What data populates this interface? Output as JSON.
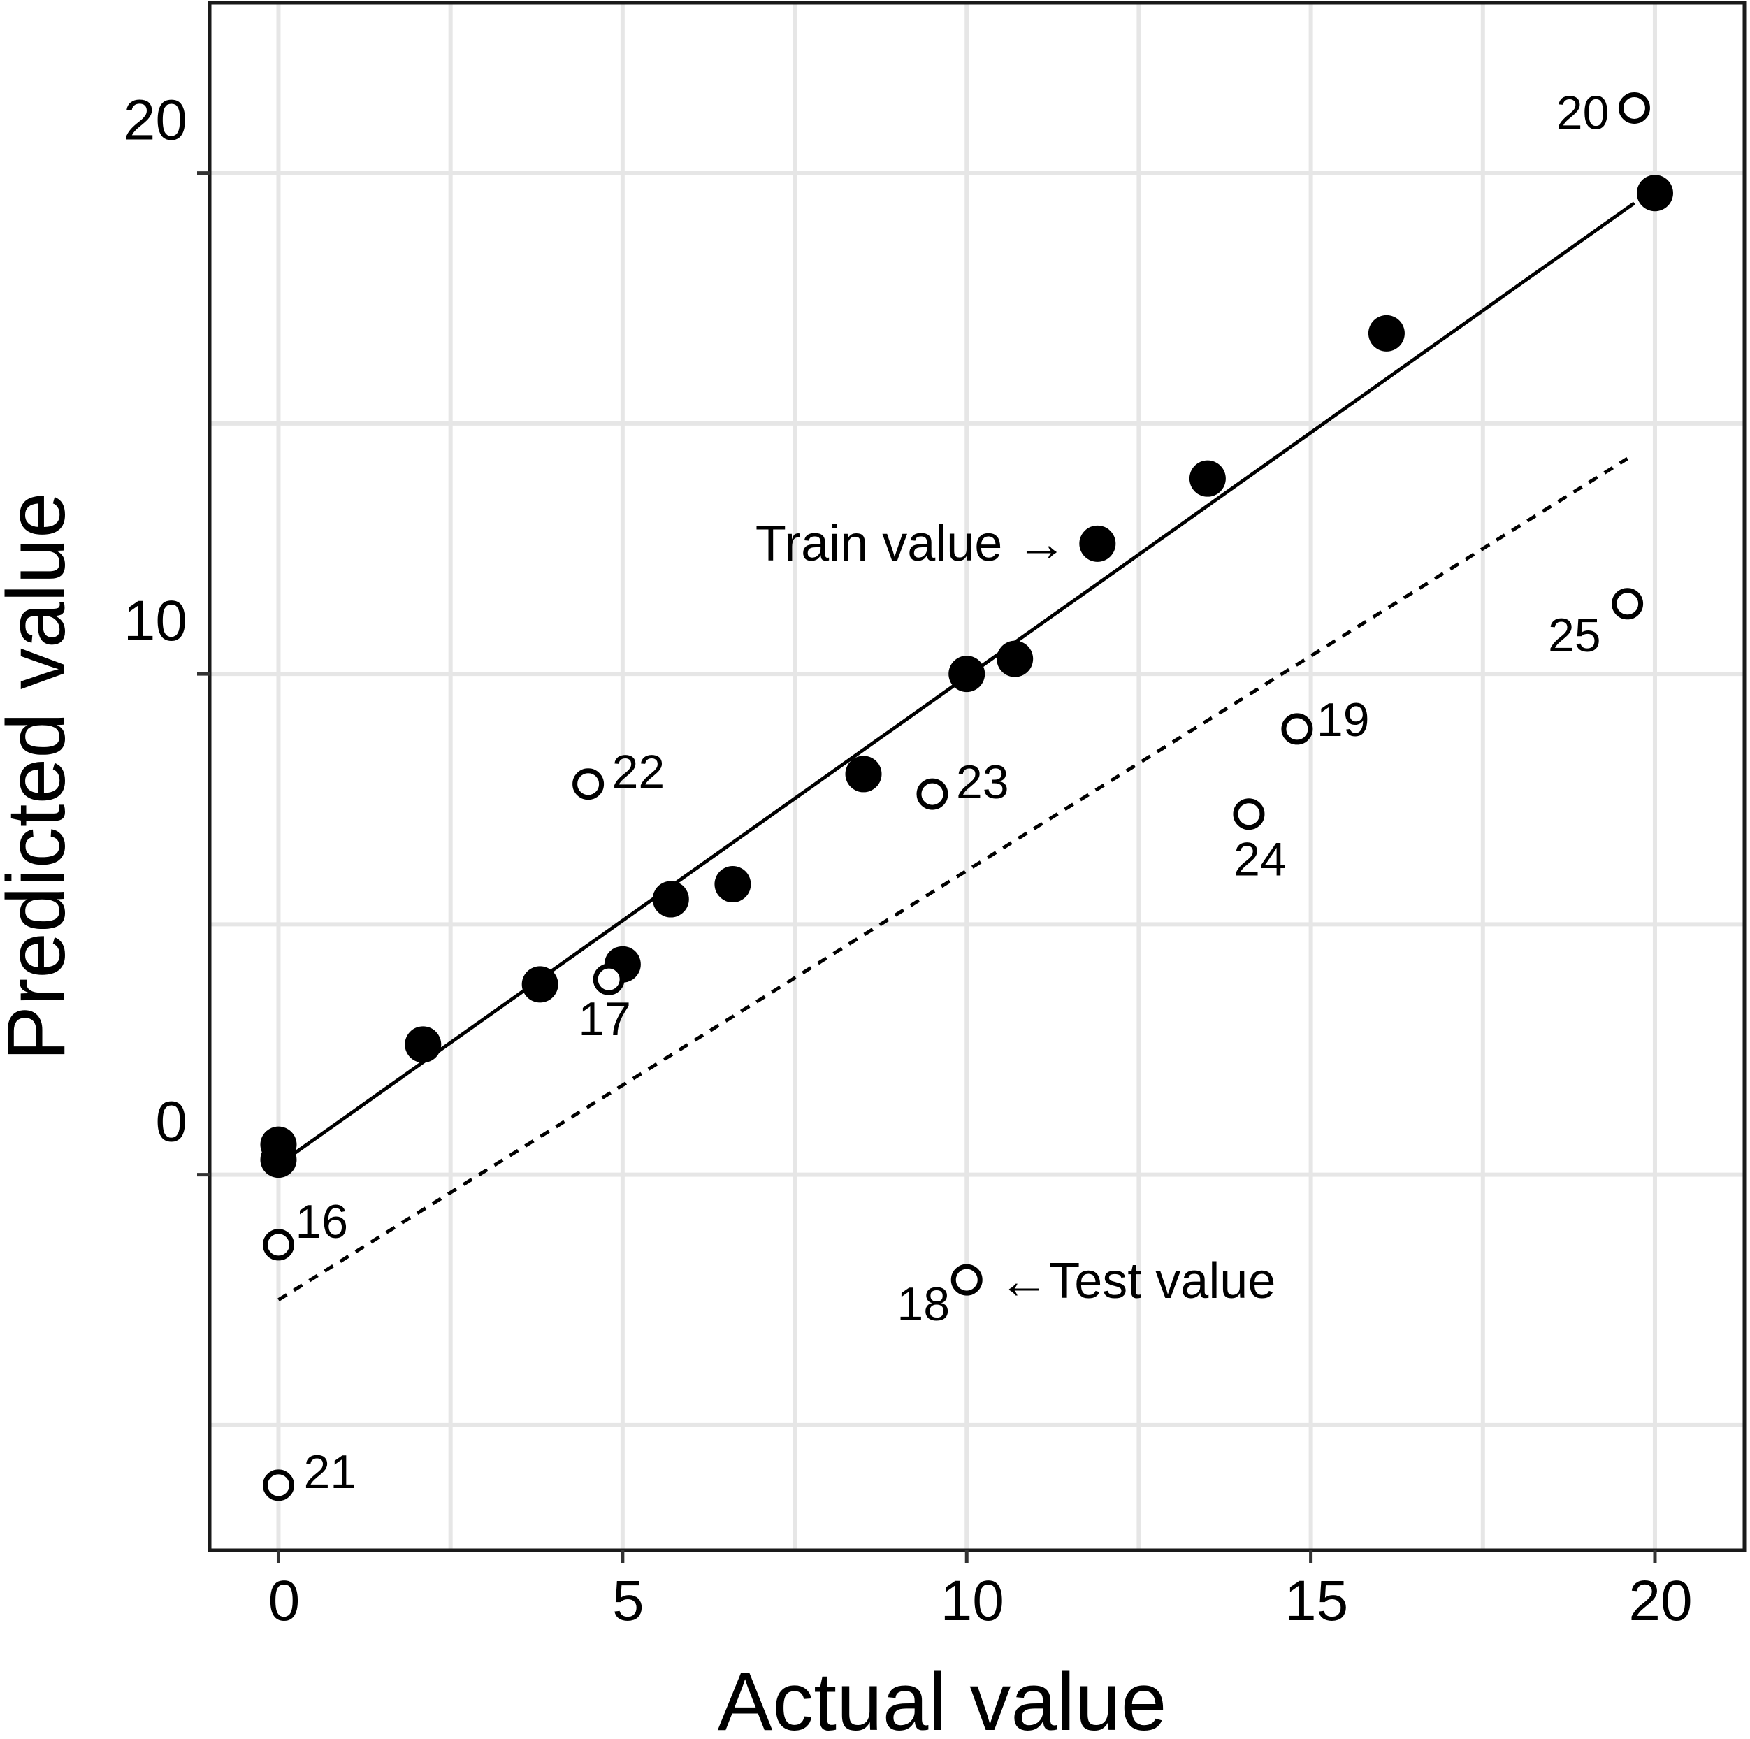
{
  "chart_data": {
    "type": "scatter",
    "xlabel": "Actual value",
    "ylabel": "Predicted value",
    "xlim": [
      -1,
      21.3
    ],
    "ylim": [
      -7.5,
      23.4
    ],
    "x_ticks": [
      0,
      5,
      10,
      15,
      20
    ],
    "y_ticks": [
      0,
      10,
      20
    ],
    "x_tick_labels": [
      "0",
      "5",
      "10",
      "15",
      "20"
    ],
    "y_tick_labels": [
      "0",
      "10",
      "20"
    ],
    "grid": true,
    "series": [
      {
        "marker": "filled-circle",
        "points": [
          {
            "x": 0,
            "y": 0.6
          },
          {
            "x": 0,
            "y": 0.3
          },
          {
            "x": 2.1,
            "y": 2.6
          },
          {
            "x": 3.8,
            "y": 3.8
          },
          {
            "x": 5.0,
            "y": 4.2
          },
          {
            "x": 5.7,
            "y": 5.5
          },
          {
            "x": 6.6,
            "y": 5.8
          },
          {
            "x": 8.5,
            "y": 8.0
          },
          {
            "x": 10.0,
            "y": 10.0
          },
          {
            "x": 10.7,
            "y": 10.3
          },
          {
            "x": 11.9,
            "y": 12.6
          },
          {
            "x": 13.5,
            "y": 13.9
          },
          {
            "x": 16.1,
            "y": 16.8
          },
          {
            "x": 20.0,
            "y": 19.6
          }
        ]
      },
      {
        "marker": "open-circle",
        "points": [
          {
            "x": 0,
            "y": -1.4,
            "label": "16"
          },
          {
            "x": 4.8,
            "y": 3.9,
            "label": "17"
          },
          {
            "x": 10.0,
            "y": -2.1,
            "label": "18"
          },
          {
            "x": 14.8,
            "y": 8.9,
            "label": "19"
          },
          {
            "x": 19.7,
            "y": 21.3,
            "label": "20"
          },
          {
            "x": 0,
            "y": -6.2,
            "label": "21"
          },
          {
            "x": 4.5,
            "y": 7.8,
            "label": "22"
          },
          {
            "x": 9.5,
            "y": 7.6,
            "label": "23"
          },
          {
            "x": 14.1,
            "y": 7.2,
            "label": "24"
          },
          {
            "x": 19.6,
            "y": 11.4,
            "label": "25"
          }
        ]
      }
    ],
    "lines": [
      {
        "style": "solid",
        "x": [
          0,
          19.7
        ],
        "y": [
          0.2,
          19.4
        ]
      },
      {
        "style": "dotted",
        "x": [
          0,
          19.6
        ],
        "y": [
          -2.5,
          14.3
        ]
      }
    ],
    "annotations": [
      {
        "text": "Train value →",
        "x": 11.9,
        "y": 12.6
      },
      {
        "text": "←Test value",
        "x": 10.0,
        "y": -2.1
      }
    ]
  }
}
